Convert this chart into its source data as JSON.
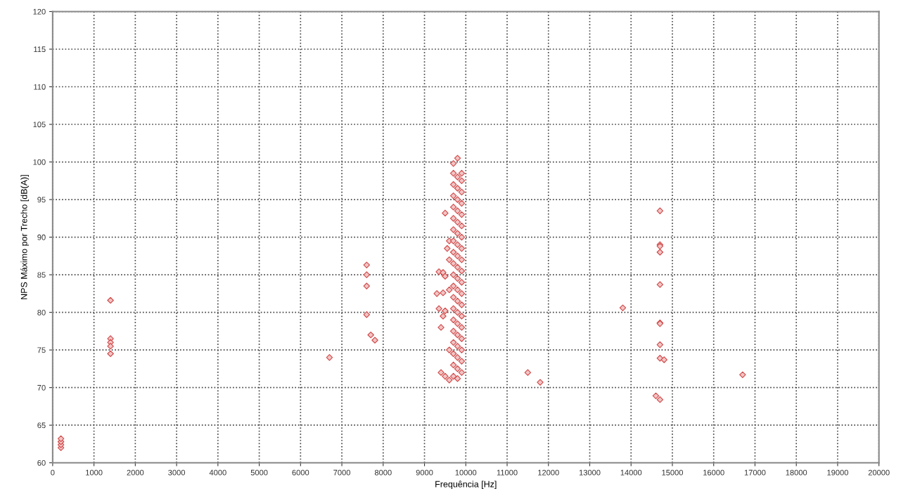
{
  "chart_data": {
    "type": "scatter",
    "xlabel": "Frequência [Hz]",
    "ylabel": "NPS Máximo por Trecho [dB(A)]",
    "xlim": [
      0,
      20000
    ],
    "xticks": [
      0,
      1000,
      2000,
      3000,
      4000,
      5000,
      6000,
      7000,
      8000,
      9000,
      10000,
      11000,
      12000,
      13000,
      14000,
      15000,
      16000,
      17000,
      18000,
      19000,
      20000
    ],
    "ylim": [
      60,
      120
    ],
    "yticks": [
      60,
      65,
      70,
      75,
      80,
      85,
      90,
      95,
      100,
      105,
      110,
      115,
      120
    ],
    "grid": true,
    "marker": "diamond",
    "line_style": "dotted",
    "series": [
      {
        "color": "#d04848",
        "x": [
          200,
          200,
          200,
          200,
          1400,
          1400,
          1400,
          1400,
          1400,
          6700,
          7600,
          7600,
          7600,
          7600,
          7700,
          7800,
          9350,
          9450,
          9500,
          9300,
          9450,
          9350,
          9500,
          9450,
          9400,
          9500,
          9550,
          9600,
          9600,
          9400,
          9500,
          9600,
          9600,
          9600,
          9700,
          9700,
          9700,
          9700,
          9700,
          9700,
          9700,
          9700,
          9700,
          9700,
          9700,
          9700,
          9700,
          9700,
          9700,
          9700,
          9700,
          9700,
          9700,
          9700,
          9800,
          9800,
          9800,
          9800,
          9800,
          9800,
          9800,
          9800,
          9800,
          9800,
          9800,
          9800,
          9800,
          9800,
          9800,
          9800,
          9800,
          9800,
          9800,
          9800,
          9900,
          9900,
          9900,
          9900,
          9900,
          9900,
          9900,
          9900,
          9900,
          9900,
          9900,
          9900,
          9900,
          9900,
          9900,
          9900,
          9900,
          9900,
          9900,
          11500,
          11800,
          13800,
          14700,
          14700,
          14700,
          14700,
          14700,
          14700,
          14700,
          14700,
          14700,
          14800,
          14600,
          14700,
          16700
        ],
        "values": [
          62.0,
          62.4,
          62.8,
          63.2,
          81.6,
          76.5,
          76.0,
          75.5,
          74.5,
          74.0,
          86.3,
          85.0,
          83.5,
          79.7,
          77.0,
          76.3,
          85.4,
          85.3,
          84.8,
          82.5,
          82.6,
          80.5,
          80.2,
          79.5,
          78.0,
          93.2,
          88.5,
          89.5,
          87.0,
          72.0,
          71.5,
          71.0,
          75.0,
          83.0,
          71.5,
          73.0,
          74.5,
          76.0,
          77.5,
          79.0,
          80.5,
          82.0,
          83.5,
          85.0,
          86.5,
          88.0,
          89.5,
          91.0,
          92.5,
          94.0,
          95.5,
          97.0,
          98.5,
          99.8,
          71.2,
          72.5,
          74.0,
          75.5,
          77.0,
          78.5,
          80.0,
          81.5,
          83.0,
          84.5,
          86.0,
          87.5,
          89.0,
          90.5,
          92.0,
          93.5,
          95.0,
          96.5,
          98.0,
          100.5,
          72.0,
          73.5,
          75.0,
          76.5,
          78.0,
          79.5,
          81.0,
          82.5,
          84.0,
          85.5,
          87.0,
          88.5,
          90.0,
          91.5,
          93.0,
          94.5,
          96.0,
          97.5,
          98.5,
          72.0,
          70.7,
          80.6,
          93.5,
          89.0,
          88.8,
          88.0,
          83.7,
          78.6,
          78.5,
          75.7,
          73.9,
          73.7,
          68.9,
          68.4,
          71.7
        ]
      }
    ]
  }
}
